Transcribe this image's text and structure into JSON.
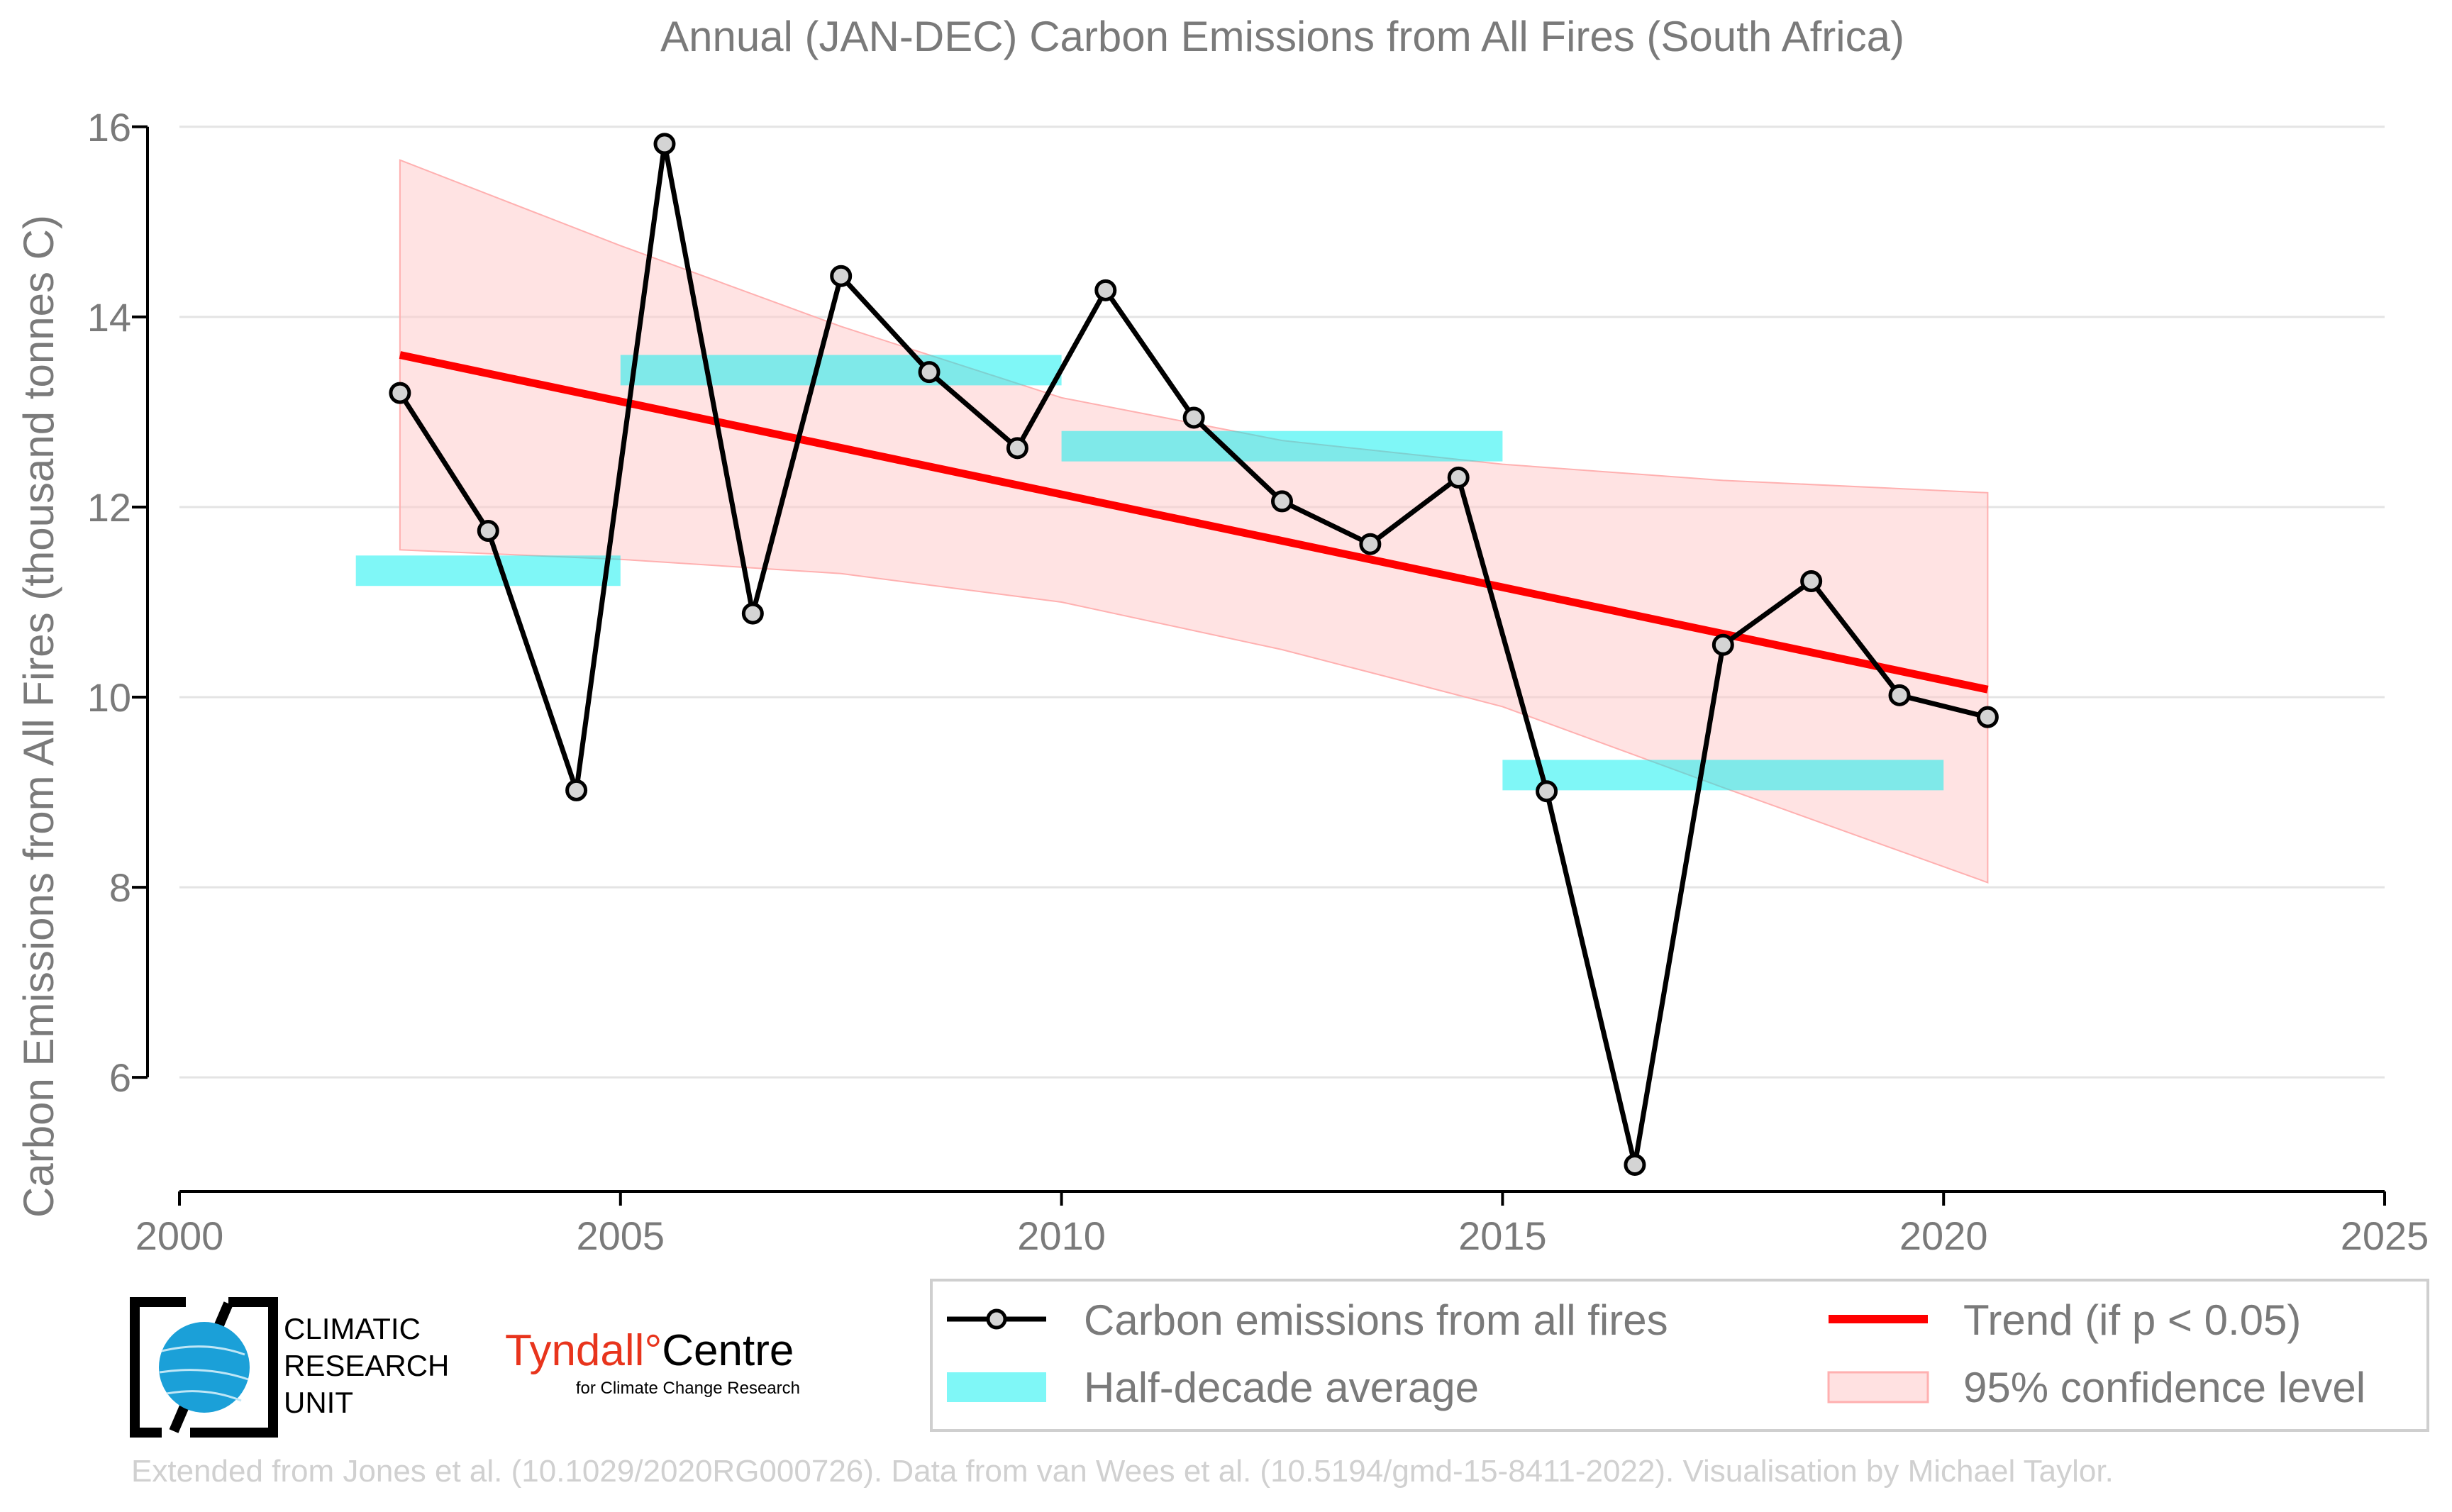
{
  "chart_data": {
    "type": "line",
    "title": "Annual (JAN-DEC) Carbon Emissions from All Fires (South Africa)",
    "xlabel": "",
    "ylabel": "Carbon Emissions from All Fires (thousand tonnes C)",
    "xlim": [
      2000,
      2025
    ],
    "ylim": [
      4.8,
      16.2
    ],
    "xticks": [
      2000,
      2005,
      2010,
      2015,
      2020,
      2025
    ],
    "yticks": [
      6,
      8,
      10,
      12,
      14,
      16
    ],
    "grid": "horizontal",
    "legend_position": "bottom-right",
    "series": [
      {
        "name": "Carbon emissions from all fires",
        "color": "#000000",
        "x": [
          2002.5,
          2003.5,
          2004.5,
          2005.5,
          2006.5,
          2007.5,
          2008.5,
          2009.5,
          2010.5,
          2011.5,
          2012.5,
          2013.5,
          2014.5,
          2015.5,
          2016.5,
          2017.5,
          2018.5,
          2019.5,
          2020.5
        ],
        "values": [
          13.2,
          11.75,
          9.02,
          15.82,
          10.88,
          14.43,
          13.42,
          12.62,
          14.28,
          12.94,
          12.06,
          11.61,
          12.31,
          9.01,
          5.08,
          10.55,
          11.22,
          10.02,
          9.79
        ]
      }
    ],
    "half_decade_averages": {
      "name": "Half-decade average",
      "color": "#00f0ef",
      "segments": [
        {
          "x0": 2002,
          "x1": 2005,
          "value": 11.33
        },
        {
          "x0": 2005,
          "x1": 2010,
          "value": 13.44
        },
        {
          "x0": 2010,
          "x1": 2015,
          "value": 12.64
        },
        {
          "x0": 2015,
          "x1": 2020,
          "value": 9.18
        }
      ]
    },
    "trend": {
      "name": "Trend (if p < 0.05)",
      "color": "#ff0000",
      "x": [
        2002.5,
        2020.5
      ],
      "values": [
        13.6,
        10.08
      ]
    },
    "confidence_band": {
      "name": "95% confidence level",
      "color": "#ffc8c8",
      "x": [
        2002.5,
        2005,
        2007.5,
        2010,
        2012.5,
        2015,
        2017.5,
        2020.5
      ],
      "upper": [
        15.65,
        14.75,
        13.9,
        13.15,
        12.7,
        12.45,
        12.28,
        12.15
      ],
      "lower": [
        11.55,
        11.45,
        11.3,
        11.0,
        10.5,
        9.9,
        9.05,
        8.05
      ]
    }
  },
  "logos": {
    "cru": {
      "lines": [
        "CLIMATIC",
        "RESEARCH",
        "UNIT"
      ]
    },
    "tyndall": {
      "name_part1": "Tyndall",
      "degree": "°",
      "name_part2": "Centre",
      "subtitle": "for Climate Change Research"
    }
  },
  "credit": "Extended from Jones et al. (10.1029/2020RG000726). Data from van Wees et al. (10.5194/gmd-15-8411-2022). Visualisation by Michael Taylor."
}
